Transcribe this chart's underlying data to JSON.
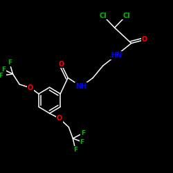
{
  "bg_color": "#000000",
  "bond_color": "#ffffff",
  "atom_colors": {
    "Cl": "#00bb00",
    "O": "#ff0000",
    "N": "#0000ff",
    "F": "#00bb00",
    "C": "#ffffff",
    "H": "#ffffff"
  }
}
